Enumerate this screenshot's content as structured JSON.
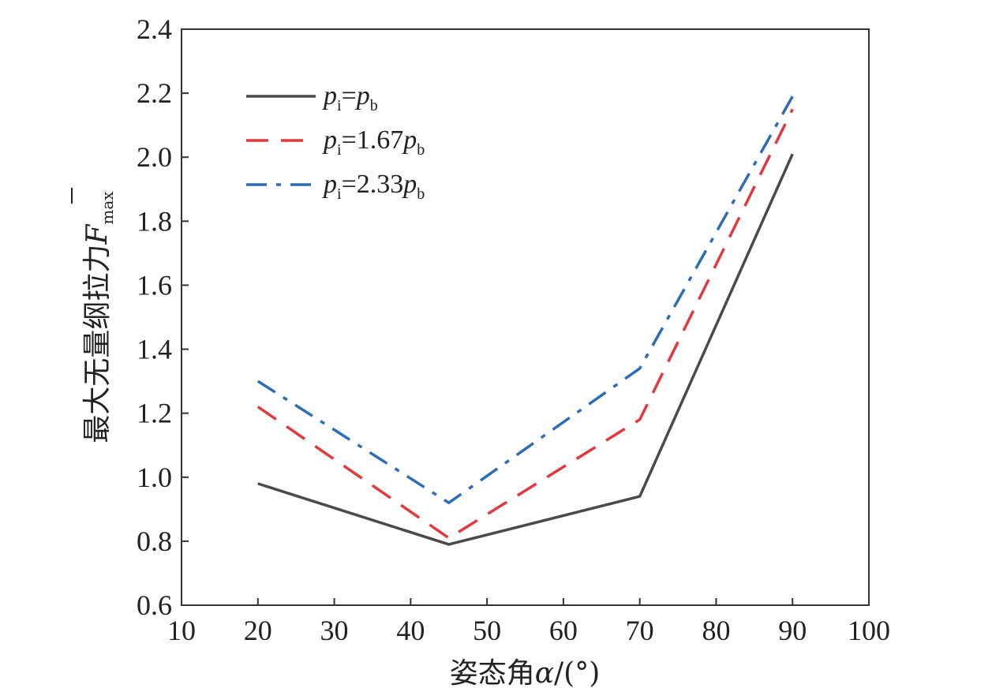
{
  "chart_data": {
    "type": "line",
    "xlabel": "姿态角α/(°)",
    "ylabel": "最大无量纲拉力F̄max",
    "xlim": [
      10,
      100
    ],
    "ylim": [
      0.6,
      2.4
    ],
    "xticks": [
      "10",
      "20",
      "30",
      "40",
      "50",
      "60",
      "70",
      "80",
      "90",
      "100"
    ],
    "yticks": [
      "0.6",
      "0.8",
      "1.0",
      "1.2",
      "1.4",
      "1.6",
      "1.8",
      "2.0",
      "2.2",
      "2.4"
    ],
    "grid": false,
    "legend_position": "top-left",
    "x": [
      20,
      45,
      70,
      90
    ],
    "series": [
      {
        "name": "pi=pb",
        "values": [
          0.98,
          0.79,
          0.94,
          2.01
        ],
        "color": "#4a4a4a",
        "dash": "solid"
      },
      {
        "name": "pi=1.67pb",
        "values": [
          1.22,
          0.81,
          1.18,
          2.15
        ],
        "color": "#e0393e",
        "dash": "dashed"
      },
      {
        "name": "pi=2.33pb",
        "values": [
          1.3,
          0.92,
          1.34,
          2.19
        ],
        "color": "#2e6db3",
        "dash": "dashdot"
      }
    ],
    "legend": [
      {
        "p": "p",
        "sub_i": "i",
        "eq": "=",
        "coef": "",
        "p2": "p",
        "sub_b": "b"
      },
      {
        "p": "p",
        "sub_i": "i",
        "eq": "=",
        "coef": "1.67",
        "p2": "p",
        "sub_b": "b"
      },
      {
        "p": "p",
        "sub_i": "i",
        "eq": "=",
        "coef": "2.33",
        "p2": "p",
        "sub_b": "b"
      }
    ],
    "axis_text": {
      "x_prefix": "姿态角",
      "x_symbol": "α",
      "x_suffix": "/(°)",
      "y_prefix": "最大无量纲拉力",
      "y_symbol": "F",
      "y_sub": "max"
    }
  }
}
